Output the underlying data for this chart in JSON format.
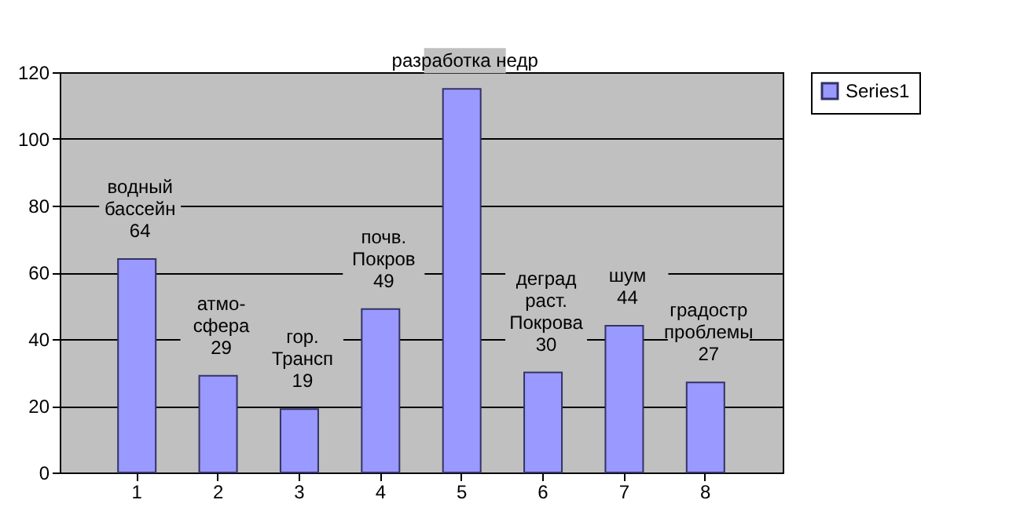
{
  "chart_data": {
    "type": "bar",
    "categories": [
      "1",
      "2",
      "3",
      "4",
      "5",
      "6",
      "7",
      "8"
    ],
    "series": [
      {
        "name": "Series1",
        "color": "#9999ff",
        "values": [
          64,
          29,
          19,
          49,
          115,
          30,
          44,
          27
        ]
      }
    ],
    "value_labels": [
      "водный\nбассейн\n64",
      "атмо-\nсфера\n29",
      "гор.\nТрансп\n19",
      "почв.\nПокров\n49",
      "разработка недр",
      "деград\nраст.\nПокрова\n30",
      "шум\n44",
      "градостр\nпроблемы\n27"
    ],
    "ylim": [
      0,
      120
    ],
    "yticks": [
      0,
      20,
      40,
      60,
      80,
      100,
      120
    ],
    "grid": "y",
    "legend": "right"
  }
}
